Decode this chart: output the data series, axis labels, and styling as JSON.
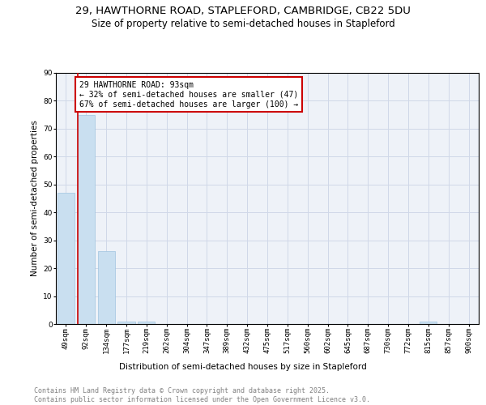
{
  "title_line1": "29, HAWTHORNE ROAD, STAPLEFORD, CAMBRIDGE, CB22 5DU",
  "title_line2": "Size of property relative to semi-detached houses in Stapleford",
  "xlabel": "Distribution of semi-detached houses by size in Stapleford",
  "ylabel": "Number of semi-detached properties",
  "categories": [
    "49sqm",
    "92sqm",
    "134sqm",
    "177sqm",
    "219sqm",
    "262sqm",
    "304sqm",
    "347sqm",
    "389sqm",
    "432sqm",
    "475sqm",
    "517sqm",
    "560sqm",
    "602sqm",
    "645sqm",
    "687sqm",
    "730sqm",
    "772sqm",
    "815sqm",
    "857sqm",
    "900sqm"
  ],
  "values": [
    47,
    75,
    26,
    1,
    1,
    0,
    0,
    0,
    0,
    0,
    0,
    0,
    0,
    0,
    0,
    0,
    0,
    0,
    1,
    0,
    0
  ],
  "bar_color": "#c9dff0",
  "bar_edge_color": "#a0c4e0",
  "vline_xdata": 0.6,
  "vline_color": "#cc0000",
  "annotation_title": "29 HAWTHORNE ROAD: 93sqm",
  "annotation_line1": "← 32% of semi-detached houses are smaller (47)",
  "annotation_line2": "67% of semi-detached houses are larger (100) →",
  "annotation_box_color": "#cc0000",
  "ylim": [
    0,
    90
  ],
  "yticks": [
    0,
    10,
    20,
    30,
    40,
    50,
    60,
    70,
    80,
    90
  ],
  "grid_color": "#d0d8e8",
  "background_color": "#eef2f8",
  "footer_line1": "Contains HM Land Registry data © Crown copyright and database right 2025.",
  "footer_line2": "Contains public sector information licensed under the Open Government Licence v3.0.",
  "title_fontsize": 9.5,
  "subtitle_fontsize": 8.5,
  "axis_label_fontsize": 7.5,
  "tick_fontsize": 6.5,
  "annotation_fontsize": 7,
  "footer_fontsize": 6
}
